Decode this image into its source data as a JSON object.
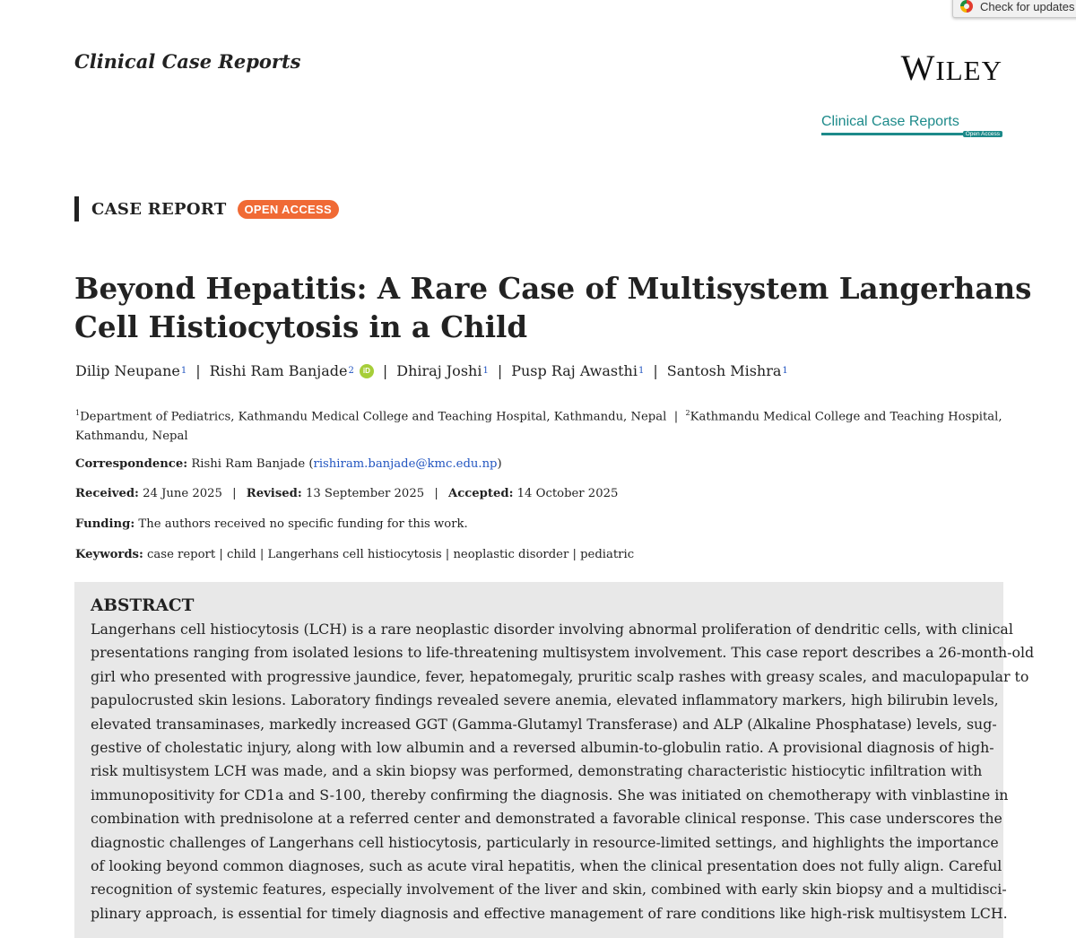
{
  "check_updates": {
    "label": "Check for updates",
    "icon": "crossmark-icon"
  },
  "journal": {
    "title": "Clinical Case Reports"
  },
  "publisher": {
    "name_first": "W",
    "name_rest": "ILEY",
    "journal_logo_text": "Clinical Case Reports",
    "journal_logo_badge": "Open Access"
  },
  "article_type": {
    "label": "CASE REPORT",
    "badge": "OPEN ACCESS"
  },
  "title_lines": [
    "Beyond Hepatitis: A Rare Case of Multisystem Langerhans",
    "Cell Histiocytosis in a Child"
  ],
  "authors": [
    {
      "name": "Dilip Neupane",
      "aff": "1"
    },
    {
      "name": "Rishi Ram Banjade",
      "aff": "2",
      "orcid": "iD"
    },
    {
      "name": "Dhiraj Joshi",
      "aff": "1"
    },
    {
      "name": "Pusp Raj Awasthi",
      "aff": "1"
    },
    {
      "name": "Santosh Mishra",
      "aff": "1"
    }
  ],
  "affiliations": {
    "aff1_num": "1",
    "aff1_text": "Department of Pediatrics, Kathmandu Medical College and Teaching Hospital, Kathmandu, Nepal",
    "sep": "|",
    "aff2_num": "2",
    "aff2_text": "Kathmandu Medical College and Teaching Hospital,",
    "aff2_cont": "Kathmandu, Nepal"
  },
  "correspondence": {
    "label": "Correspondence:",
    "name": "Rishi Ram Banjade",
    "email": "rishiram.banjade@kmc.edu.np"
  },
  "dates": {
    "received_label": "Received:",
    "received": "24 June 2025",
    "revised_label": "Revised:",
    "revised": "13 September 2025",
    "accepted_label": "Accepted:",
    "accepted": "14 October 2025"
  },
  "funding": {
    "label": "Funding:",
    "text": "The authors received no specific funding for this work."
  },
  "keywords": {
    "label": "Keywords:",
    "text": "case report | child | Langerhans cell histiocytosis | neoplastic disorder | pediatric"
  },
  "abstract": {
    "heading": "ABSTRACT",
    "lines": [
      "Langerhans cell histiocytosis (LCH) is a rare neoplastic disorder involving abnormal proliferation of dendritic cells, with clinical",
      "presentations ranging from isolated lesions to life-threatening multisystem involvement. This case report describes a 26-month-old",
      "girl who presented with progressive jaundice, fever, hepatomegaly, pruritic scalp rashes with greasy scales, and maculopapular to",
      "papulocrusted skin lesions. Laboratory findings revealed severe anemia, elevated inflammatory markers, high bilirubin levels,",
      "elevated transaminases, markedly increased GGT (Gamma-Glutamyl Transferase) and ALP (Alkaline Phosphatase) levels, sug-",
      "gestive of cholestatic injury, along with low albumin and a reversed albumin-to-globulin ratio. A provisional diagnosis of high-",
      "risk multisystem LCH was made, and a skin biopsy was performed, demonstrating characteristic histiocytic infiltration with",
      "immunopositivity for CD1a and S-100, thereby confirming the diagnosis. She was initiated on chemotherapy with vinblastine in",
      "combination with prednisolone at a referred center and demonstrated a favorable clinical response. This case underscores the",
      "diagnostic challenges of Langerhans cell histiocytosis, particularly in resource-limited settings, and highlights the importance",
      "of looking beyond common diagnoses, such as acute viral hepatitis, when the clinical presentation does not fully align. Careful",
      "recognition of systemic features, especially involvement of the liver and skin, combined with early skin biopsy and a multidisci-",
      "plinary approach, is essential for timely diagnosis and effective management of rare conditions like high-risk multisystem LCH."
    ]
  }
}
